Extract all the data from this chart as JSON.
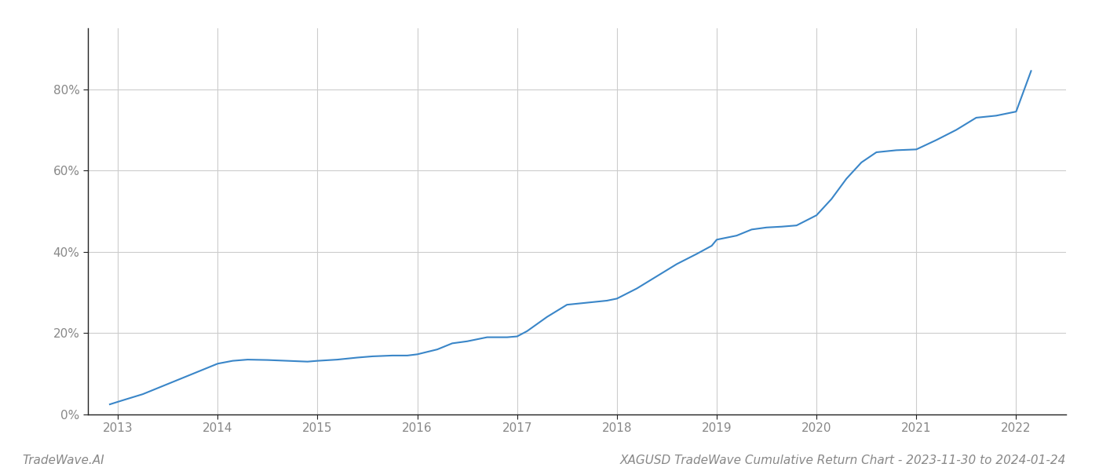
{
  "title": "XAGUSD TradeWave Cumulative Return Chart - 2023-11-30 to 2024-01-24",
  "watermark": "TradeWave.AI",
  "line_color": "#3a86c8",
  "background_color": "#ffffff",
  "grid_color": "#cccccc",
  "x_values": [
    2012.92,
    2013.05,
    2013.25,
    2013.5,
    2013.75,
    2014.0,
    2014.15,
    2014.3,
    2014.5,
    2014.7,
    2014.9,
    2015.0,
    2015.2,
    2015.4,
    2015.55,
    2015.75,
    2015.9,
    2016.0,
    2016.2,
    2016.35,
    2016.5,
    2016.7,
    2016.9,
    2017.0,
    2017.1,
    2017.3,
    2017.5,
    2017.7,
    2017.9,
    2018.0,
    2018.2,
    2018.4,
    2018.6,
    2018.8,
    2018.95,
    2019.0,
    2019.2,
    2019.35,
    2019.5,
    2019.65,
    2019.8,
    2020.0,
    2020.15,
    2020.3,
    2020.45,
    2020.6,
    2020.8,
    2021.0,
    2021.2,
    2021.4,
    2021.6,
    2021.8,
    2022.0,
    2022.15
  ],
  "y_values": [
    2.5,
    3.5,
    5.0,
    7.5,
    10.0,
    12.5,
    13.2,
    13.5,
    13.4,
    13.2,
    13.0,
    13.2,
    13.5,
    14.0,
    14.3,
    14.5,
    14.5,
    14.8,
    16.0,
    17.5,
    18.0,
    19.0,
    19.0,
    19.2,
    20.5,
    24.0,
    27.0,
    27.5,
    28.0,
    28.5,
    31.0,
    34.0,
    37.0,
    39.5,
    41.5,
    43.0,
    44.0,
    45.5,
    46.0,
    46.2,
    46.5,
    49.0,
    53.0,
    58.0,
    62.0,
    64.5,
    65.0,
    65.2,
    67.5,
    70.0,
    73.0,
    73.5,
    74.5,
    84.5
  ],
  "xlim": [
    2012.7,
    2022.5
  ],
  "ylim": [
    0,
    95
  ],
  "yticks": [
    0,
    20,
    40,
    60,
    80
  ],
  "xticks": [
    2013,
    2014,
    2015,
    2016,
    2017,
    2018,
    2019,
    2020,
    2021,
    2022
  ],
  "line_width": 1.5,
  "title_fontsize": 11,
  "tick_fontsize": 11,
  "watermark_fontsize": 11
}
